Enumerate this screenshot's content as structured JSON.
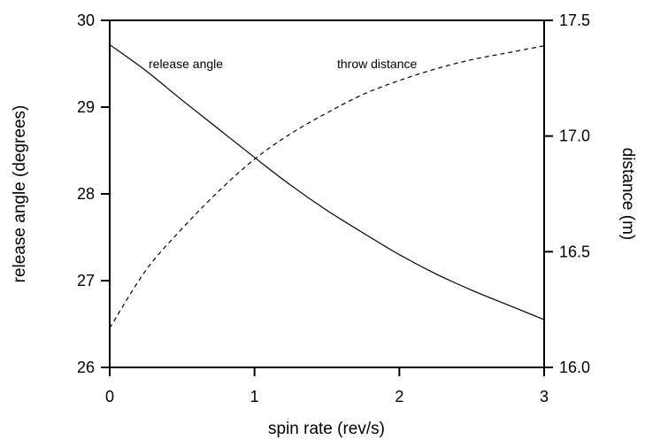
{
  "chart_data": {
    "type": "line",
    "xlabel": "spin rate (rev/s)",
    "ylabel_left": "release angle (degrees)",
    "ylabel_right": "distance (m)",
    "xlim": [
      0,
      3
    ],
    "ylim_left": [
      26,
      30
    ],
    "ylim_right": [
      16.0,
      17.5
    ],
    "x_ticks": [
      "0",
      "1",
      "2",
      "3"
    ],
    "y_ticks_left": [
      "26",
      "27",
      "28",
      "29",
      "30"
    ],
    "y_ticks_right": [
      "16.0",
      "16.5",
      "17.0",
      "17.5"
    ],
    "grid": false,
    "x": [
      0,
      0.25,
      0.5,
      0.75,
      1,
      1.25,
      1.5,
      1.75,
      2,
      2.25,
      2.5,
      2.75,
      3
    ],
    "series": [
      {
        "name": "release angle",
        "axis": "left",
        "line_style": "solid",
        "values": [
          29.72,
          29.42,
          29.08,
          28.75,
          28.42,
          28.1,
          27.81,
          27.55,
          27.3,
          27.08,
          26.89,
          26.72,
          26.55
        ]
      },
      {
        "name": "throw distance",
        "axis": "right",
        "line_style": "dashed",
        "values": [
          16.17,
          16.42,
          16.6,
          16.76,
          16.9,
          17.01,
          17.1,
          17.18,
          17.24,
          17.29,
          17.33,
          17.36,
          17.39
        ]
      }
    ],
    "annotations": {
      "release_angle": "release angle",
      "throw_distance": "throw distance"
    }
  }
}
